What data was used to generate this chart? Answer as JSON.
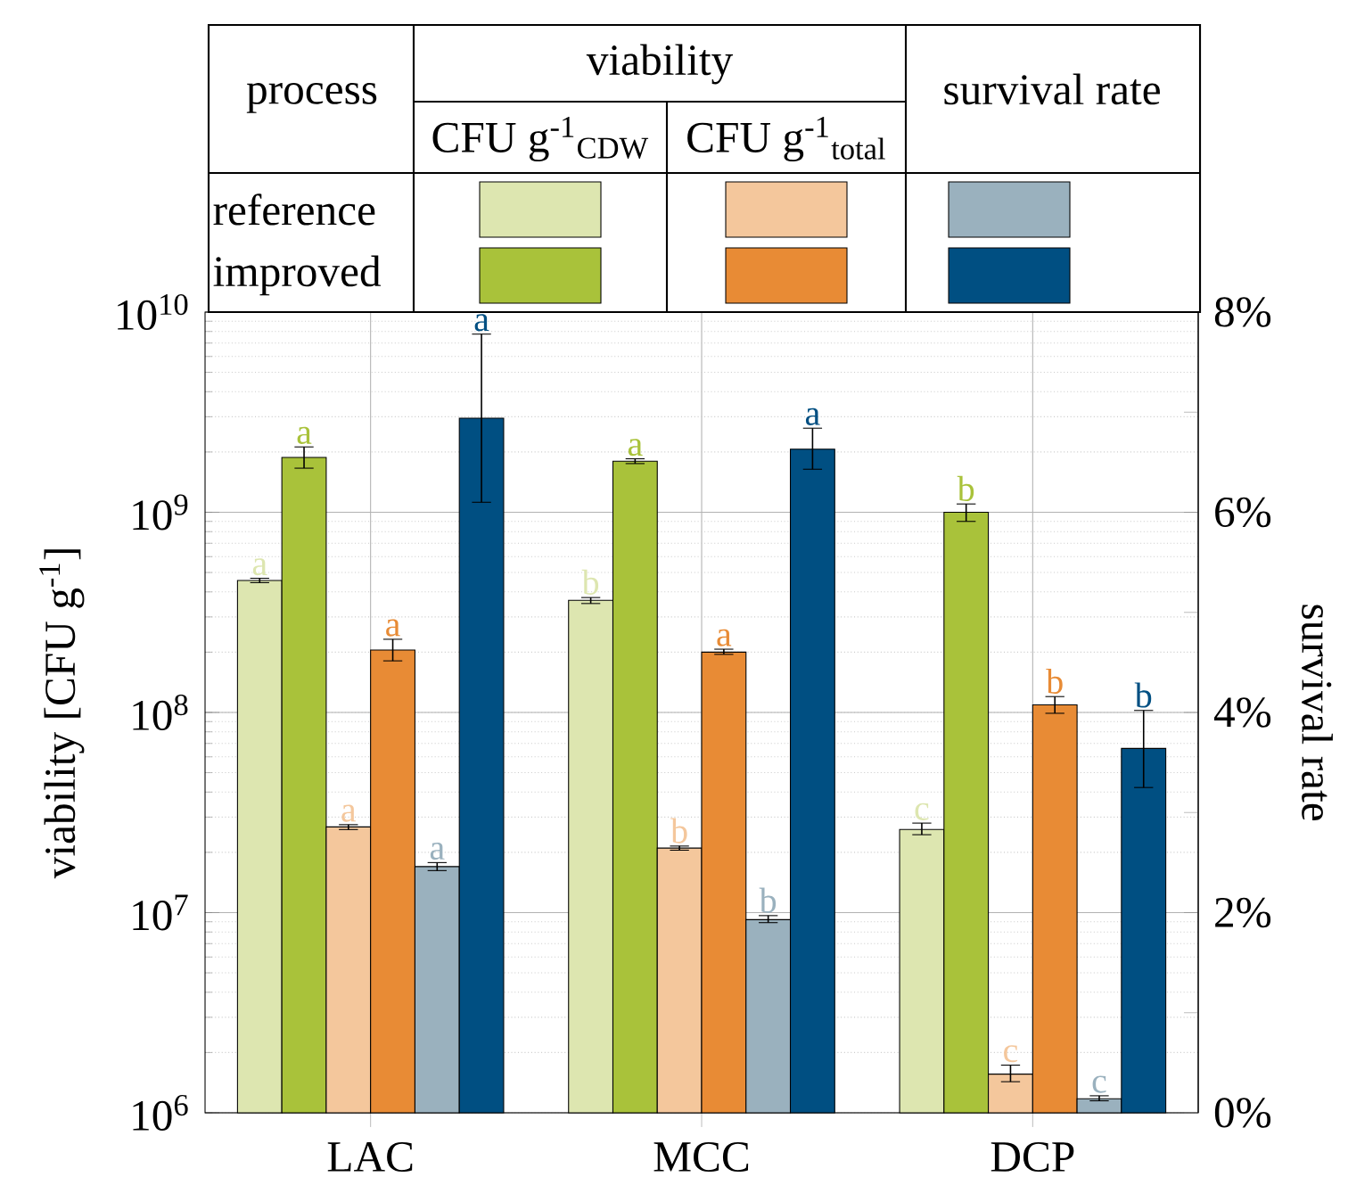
{
  "chart_data": {
    "type": "bar",
    "categories": [
      "LAC",
      "MCC",
      "DCP"
    ],
    "ylabel": "viability [CFU g$^{-1}$]",
    "y2label": "survival rate",
    "legend_title": "process",
    "legend": "top",
    "log": "y",
    "grid": true,
    "annotations": [
      "viability",
      "CFU g$^{-1}$$_{CDW}$",
      "CFU g$^{-1}$$_{total}$",
      "survival rate"
    ],
    "ylim": [
      1000000,
      10000000000
    ],
    "yticks": [
      {
        "value": 1000000,
        "label": "10$^{6}$"
      },
      {
        "value": 10000000,
        "label": "10$^{7}$"
      },
      {
        "value": 100000000,
        "label": "10$^{8}$"
      },
      {
        "value": 1000000000,
        "label": "10$^{9}$"
      },
      {
        "value": 10000000000,
        "label": "10$^{10}$"
      }
    ],
    "y2lim": [
      0,
      8
    ],
    "y2ticks": [
      {
        "value": 0,
        "label": "0%"
      },
      {
        "value": 1,
        "label": null
      },
      {
        "value": 2,
        "label": "2%"
      },
      {
        "value": 3,
        "label": null
      },
      {
        "value": 4,
        "label": "4%"
      },
      {
        "value": 5,
        "label": null
      },
      {
        "value": 6,
        "label": "6%"
      },
      {
        "value": 7,
        "label": null
      },
      {
        "value": 8,
        "label": "8%"
      }
    ],
    "series": [
      {
        "name": "reference",
        "color": "#dde6b0",
        "values": [
          456000000,
          363000000,
          26000000
        ],
        "errors": [
          [
            445000000,
            468000000
          ],
          [
            350000000,
            375000000
          ],
          [
            24500000,
            28000000
          ]
        ],
        "value_labels": [
          "a",
          "b",
          "c"
        ]
      },
      {
        "name": "improved",
        "color": "#a9c23a",
        "values": [
          1880000000,
          1800000000,
          1000000000
        ],
        "errors": [
          [
            1660000000,
            2120000000
          ],
          [
            1750000000,
            1850000000
          ],
          [
            900000000,
            1100000000
          ]
        ],
        "value_labels": [
          "a",
          "a",
          "b"
        ]
      },
      {
        "color": "#f4c79c",
        "values": [
          26800000,
          21000000,
          1560000
        ],
        "errors": [
          [
            26000000,
            27500000
          ],
          [
            20500000,
            21500000
          ],
          [
            1430000,
            1730000
          ]
        ],
        "value_labels": [
          "a",
          "b",
          "c"
        ]
      },
      {
        "color": "#e88b35",
        "values": [
          205000000,
          200000000,
          109000000
        ],
        "errors": [
          [
            181000000,
            232000000
          ],
          [
            195000000,
            207000000
          ],
          [
            99000000,
            120000000
          ]
        ],
        "value_labels": [
          "a",
          "a",
          "b"
        ]
      },
      {
        "color": "#9ab1be",
        "axis": "y2",
        "values": [
          2.46,
          1.93,
          0.14
        ],
        "errors": [
          [
            2.42,
            2.5
          ],
          [
            1.9,
            1.97
          ],
          [
            0.12,
            0.17
          ]
        ],
        "value_labels": [
          "a",
          "b",
          "c"
        ]
      },
      {
        "color": "#004f82",
        "axis": "y2",
        "values": [
          6.94,
          6.63,
          3.64
        ],
        "errors": [
          [
            6.1,
            7.78
          ],
          [
            6.43,
            6.84
          ],
          [
            3.25,
            4.02
          ]
        ],
        "value_labels": [
          "a",
          "a",
          "b"
        ]
      }
    ]
  }
}
